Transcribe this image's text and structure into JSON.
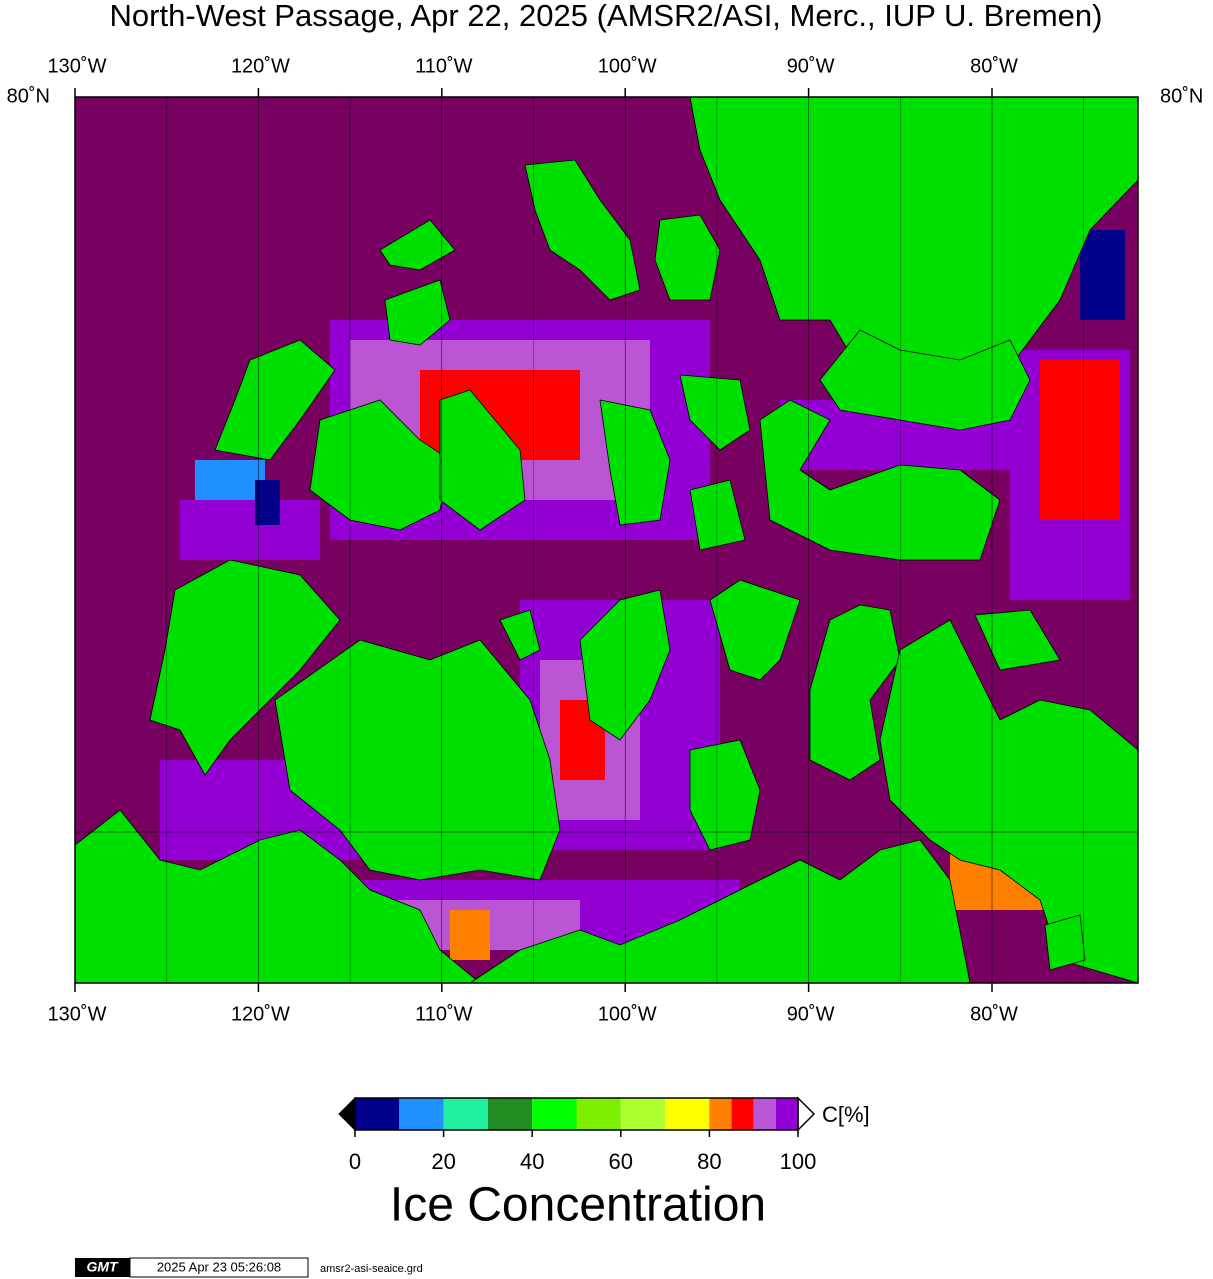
{
  "header": {
    "title": "North-West Passage, Apr 22, 2025 (AMSR2/ASI, Merc., IUP U. Bremen)"
  },
  "map": {
    "longitude_labels": [
      "130˚W",
      "120˚W",
      "110˚W",
      "100˚W",
      "90˚W",
      "80˚W"
    ],
    "latitude_label": "80˚N"
  },
  "colorbar": {
    "bins": [
      0,
      10,
      20,
      30,
      40,
      50,
      60,
      70,
      80,
      85,
      90,
      95,
      100
    ],
    "colors": [
      "#00008b",
      "#1e90ff",
      "#20f0a0",
      "#228b22",
      "#00ff00",
      "#7cf000",
      "#adff2f",
      "#ffff00",
      "#ff7f00",
      "#ff0000",
      "#ba55d3",
      "#9400d3"
    ],
    "ticks": [
      0,
      20,
      40,
      60,
      80,
      100
    ],
    "unit": "C[%]",
    "label": "Ice Concentration"
  },
  "footer": {
    "logo": "GMT",
    "timestamp": "2025 Apr 23 05:26:08",
    "file": "amsr2-asi-seaice.grd"
  }
}
